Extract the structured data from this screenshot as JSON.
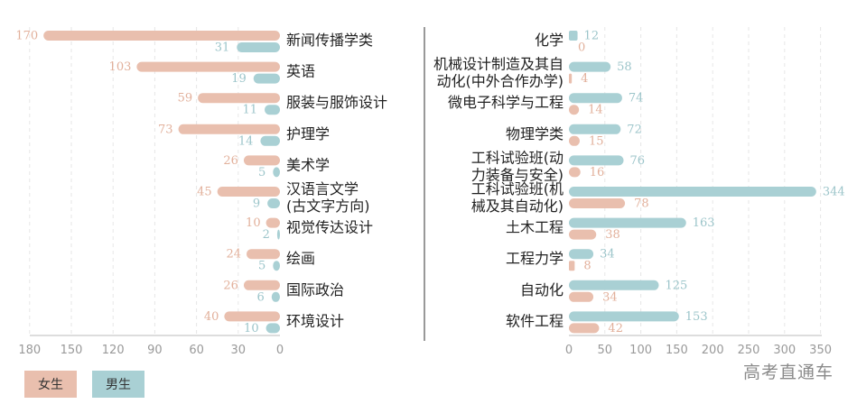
{
  "colors": {
    "female": "#e9bfae",
    "male": "#a9d0d4",
    "female_text": "#e2b09b",
    "male_text": "#9cc5ca",
    "axis": "#555555",
    "grid": "#e6e6e6",
    "label": "#222222",
    "tick": "#999999"
  },
  "legend": {
    "female": "女生",
    "male": "男生"
  },
  "watermark": "高考直通车",
  "chart_data": [
    {
      "type": "bar",
      "orientation": "horizontal",
      "x_direction": "reversed",
      "xlim": [
        0,
        180
      ],
      "xticks": [
        180,
        150,
        120,
        90,
        60,
        30,
        0
      ],
      "grid": true,
      "categories": [
        [
          "新闻传播学类"
        ],
        [
          "英语"
        ],
        [
          "服装与服饰设计"
        ],
        [
          "护理学"
        ],
        [
          "美术学"
        ],
        [
          "汉语言文学",
          "(古文字方向)"
        ],
        [
          "视觉传达设计"
        ],
        [
          "绘画"
        ],
        [
          "国际政治"
        ],
        [
          "环境设计"
        ]
      ],
      "series": [
        {
          "name": "女生",
          "values": [
            170,
            103,
            59,
            73,
            26,
            45,
            10,
            24,
            26,
            40
          ]
        },
        {
          "name": "男生",
          "values": [
            31,
            19,
            11,
            14,
            5,
            9,
            2,
            5,
            6,
            10
          ]
        }
      ]
    },
    {
      "type": "bar",
      "orientation": "horizontal",
      "xlim": [
        0,
        350
      ],
      "xticks": [
        0,
        50,
        100,
        150,
        200,
        250,
        300,
        350
      ],
      "grid": true,
      "categories": [
        [
          "化学"
        ],
        [
          "机械设计制造及其自",
          "动化(中外合作办学)"
        ],
        [
          "微电子科学与工程"
        ],
        [
          "物理学类"
        ],
        [
          "工科试验班(动",
          "力装备与安全)"
        ],
        [
          "工科试验班(机",
          "械及其自动化)"
        ],
        [
          "土木工程"
        ],
        [
          "工程力学"
        ],
        [
          "自动化"
        ],
        [
          "软件工程"
        ]
      ],
      "series": [
        {
          "name": "男生",
          "values": [
            12,
            58,
            74,
            72,
            76,
            344,
            163,
            34,
            125,
            153
          ]
        },
        {
          "name": "女生",
          "values": [
            0,
            4,
            14,
            15,
            16,
            78,
            38,
            8,
            34,
            42
          ]
        }
      ]
    }
  ]
}
